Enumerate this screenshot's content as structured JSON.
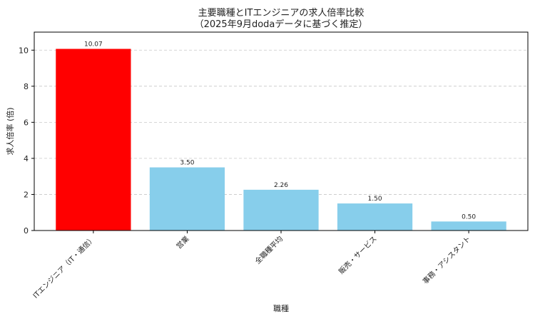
{
  "chart_data": {
    "type": "bar",
    "title": "主要職種とITエンジニアの求人倍率比較",
    "subtitle": "（2025年9月dodaデータに基づく推定）",
    "xlabel": "職種",
    "ylabel": "求人倍率 (倍)",
    "categories": [
      "ITエンジニア（IT・通信）",
      "営業",
      "全職種平均",
      "販売・サービス",
      "事務・アシスタント"
    ],
    "values": [
      10.07,
      3.5,
      2.26,
      1.5,
      0.5
    ],
    "data_labels": [
      "10.07",
      "3.50",
      "2.26",
      "1.50",
      "0.50"
    ],
    "colors": [
      "#ff0000",
      "#87ceeb",
      "#87ceeb",
      "#87ceeb",
      "#87ceeb"
    ],
    "ylim": [
      0,
      11
    ],
    "yticks": [
      0,
      2,
      4,
      6,
      8,
      10
    ],
    "grid": "y-dashed",
    "legend": "none"
  }
}
